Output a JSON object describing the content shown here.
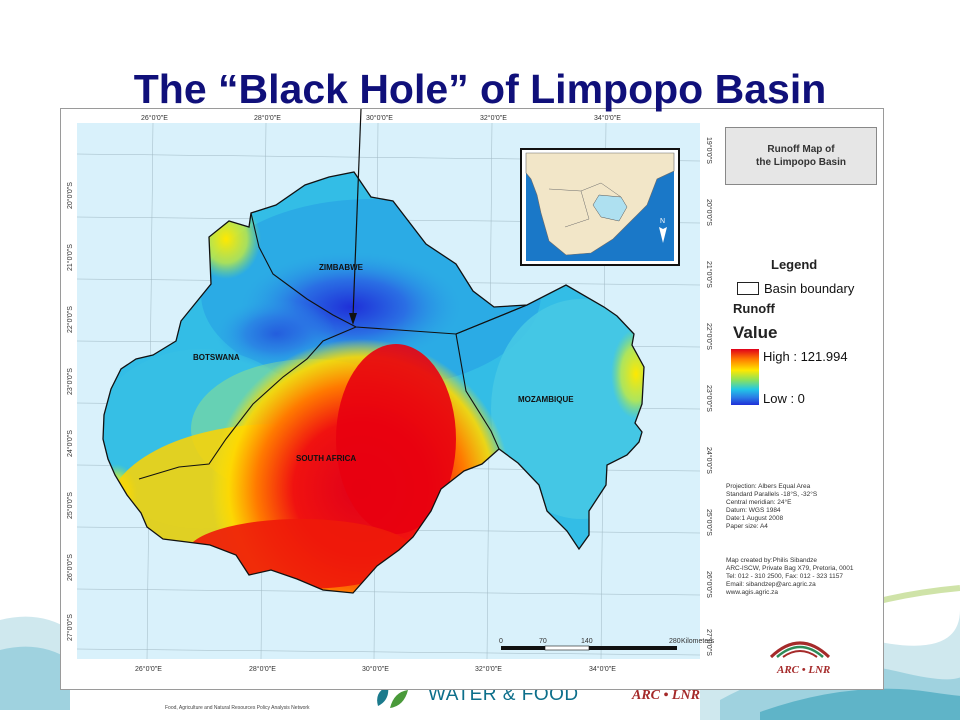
{
  "title": "The “Black Hole” of Limpopo Basin",
  "map": {
    "title_line1": "Runoff Map of",
    "title_line2": "the Limpopo Basin",
    "lon_labels": [
      "26°0'0\"E",
      "28°0'0\"E",
      "30°0'0\"E",
      "32°0'0\"E",
      "34°0'0\"E"
    ],
    "lat_labels": [
      "19°0'0\"S",
      "20°0'0\"S",
      "21°0'0\"S",
      "22°0'0\"S",
      "23°0'0\"S",
      "24°0'0\"S",
      "25°0'0\"S",
      "26°0'0\"S",
      "27°0'0\"S"
    ],
    "countries": [
      "ZIMBABWE",
      "BOTSWANA",
      "MOZAMBIQUE",
      "SOUTH AFRICA"
    ],
    "scale_ticks": [
      "0",
      "70",
      "140",
      "280"
    ],
    "scale_unit": "Kilometers",
    "north_label": "N"
  },
  "legend": {
    "title": "Legend",
    "boundary_label": "Basin boundary",
    "runoff_label": "Runoff",
    "value_label": "Value",
    "high_label": "High : 121.994",
    "low_label": "Low : 0",
    "high_value": 121.994,
    "low_value": 0,
    "ramp_colors": [
      "#e0001a",
      "#ff7a00",
      "#ffe800",
      "#8de25a",
      "#22c7e6",
      "#2a7fe6",
      "#1f30d8"
    ]
  },
  "metadata": [
    "Projection: Albers Equal Area",
    "Standard Parallels -18°S, -32°S",
    "Central meridian: 24°E",
    "Datum: WGS 1984",
    "Date:1 August 2008",
    "Paper size: A4"
  ],
  "credit": [
    "Map created by:Philis Sibandze",
    "ARC-ISCW, Private Bag X79, Pretoria, 0001",
    "Tel: 012 - 310 2500, Fax: 012 - 323 1157",
    "Email: sibandzep@arc.agric.za",
    "www.agis.agric.za"
  ],
  "footer": {
    "left_small": "Food, Agriculture and Natural Resources Policy Analysis Network",
    "mid": "WATER & FOOD",
    "right": "ARC • LNR"
  }
}
